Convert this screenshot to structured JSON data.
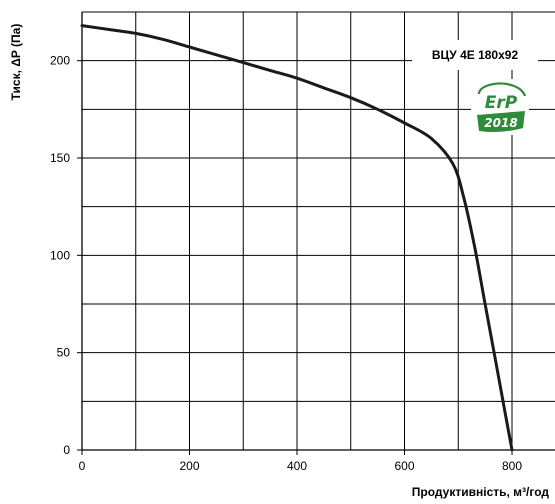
{
  "chart_data": {
    "type": "line",
    "xlabel": "Продуктивність, м³/год",
    "ylabel": "Тиск, ΔP (Па)",
    "xlim": [
      0,
      880
    ],
    "ylim": [
      0,
      225
    ],
    "x_ticks": [
      0,
      200,
      400,
      600,
      800
    ],
    "y_ticks": [
      0,
      50,
      100,
      150,
      200
    ],
    "x_tick_labels": [
      "0",
      "200",
      "400",
      "600",
      "800"
    ],
    "y_tick_labels": [
      "0",
      "50",
      "100",
      "150",
      "200"
    ],
    "grid": true,
    "legend": "none",
    "series": [
      {
        "name": "ВЦУ 4Е 180х92",
        "color": "#1a1a1a",
        "x": [
          0,
          50,
          100,
          150,
          200,
          250,
          300,
          350,
          400,
          450,
          500,
          550,
          600,
          650,
          690,
          710,
          730,
          750,
          770,
          790,
          800
        ],
        "y": [
          218,
          216,
          214,
          211,
          207,
          203,
          199,
          195,
          191,
          186,
          181,
          175,
          168,
          160,
          147,
          130,
          105,
          75,
          45,
          15,
          0
        ]
      }
    ],
    "annotations": [
      {
        "text": "ВЦУ 4Е 180х92"
      }
    ]
  },
  "badge": {
    "icon": "erp-2018-icon",
    "text": "ErP",
    "year": "2018",
    "color": "#2f8a3c"
  }
}
